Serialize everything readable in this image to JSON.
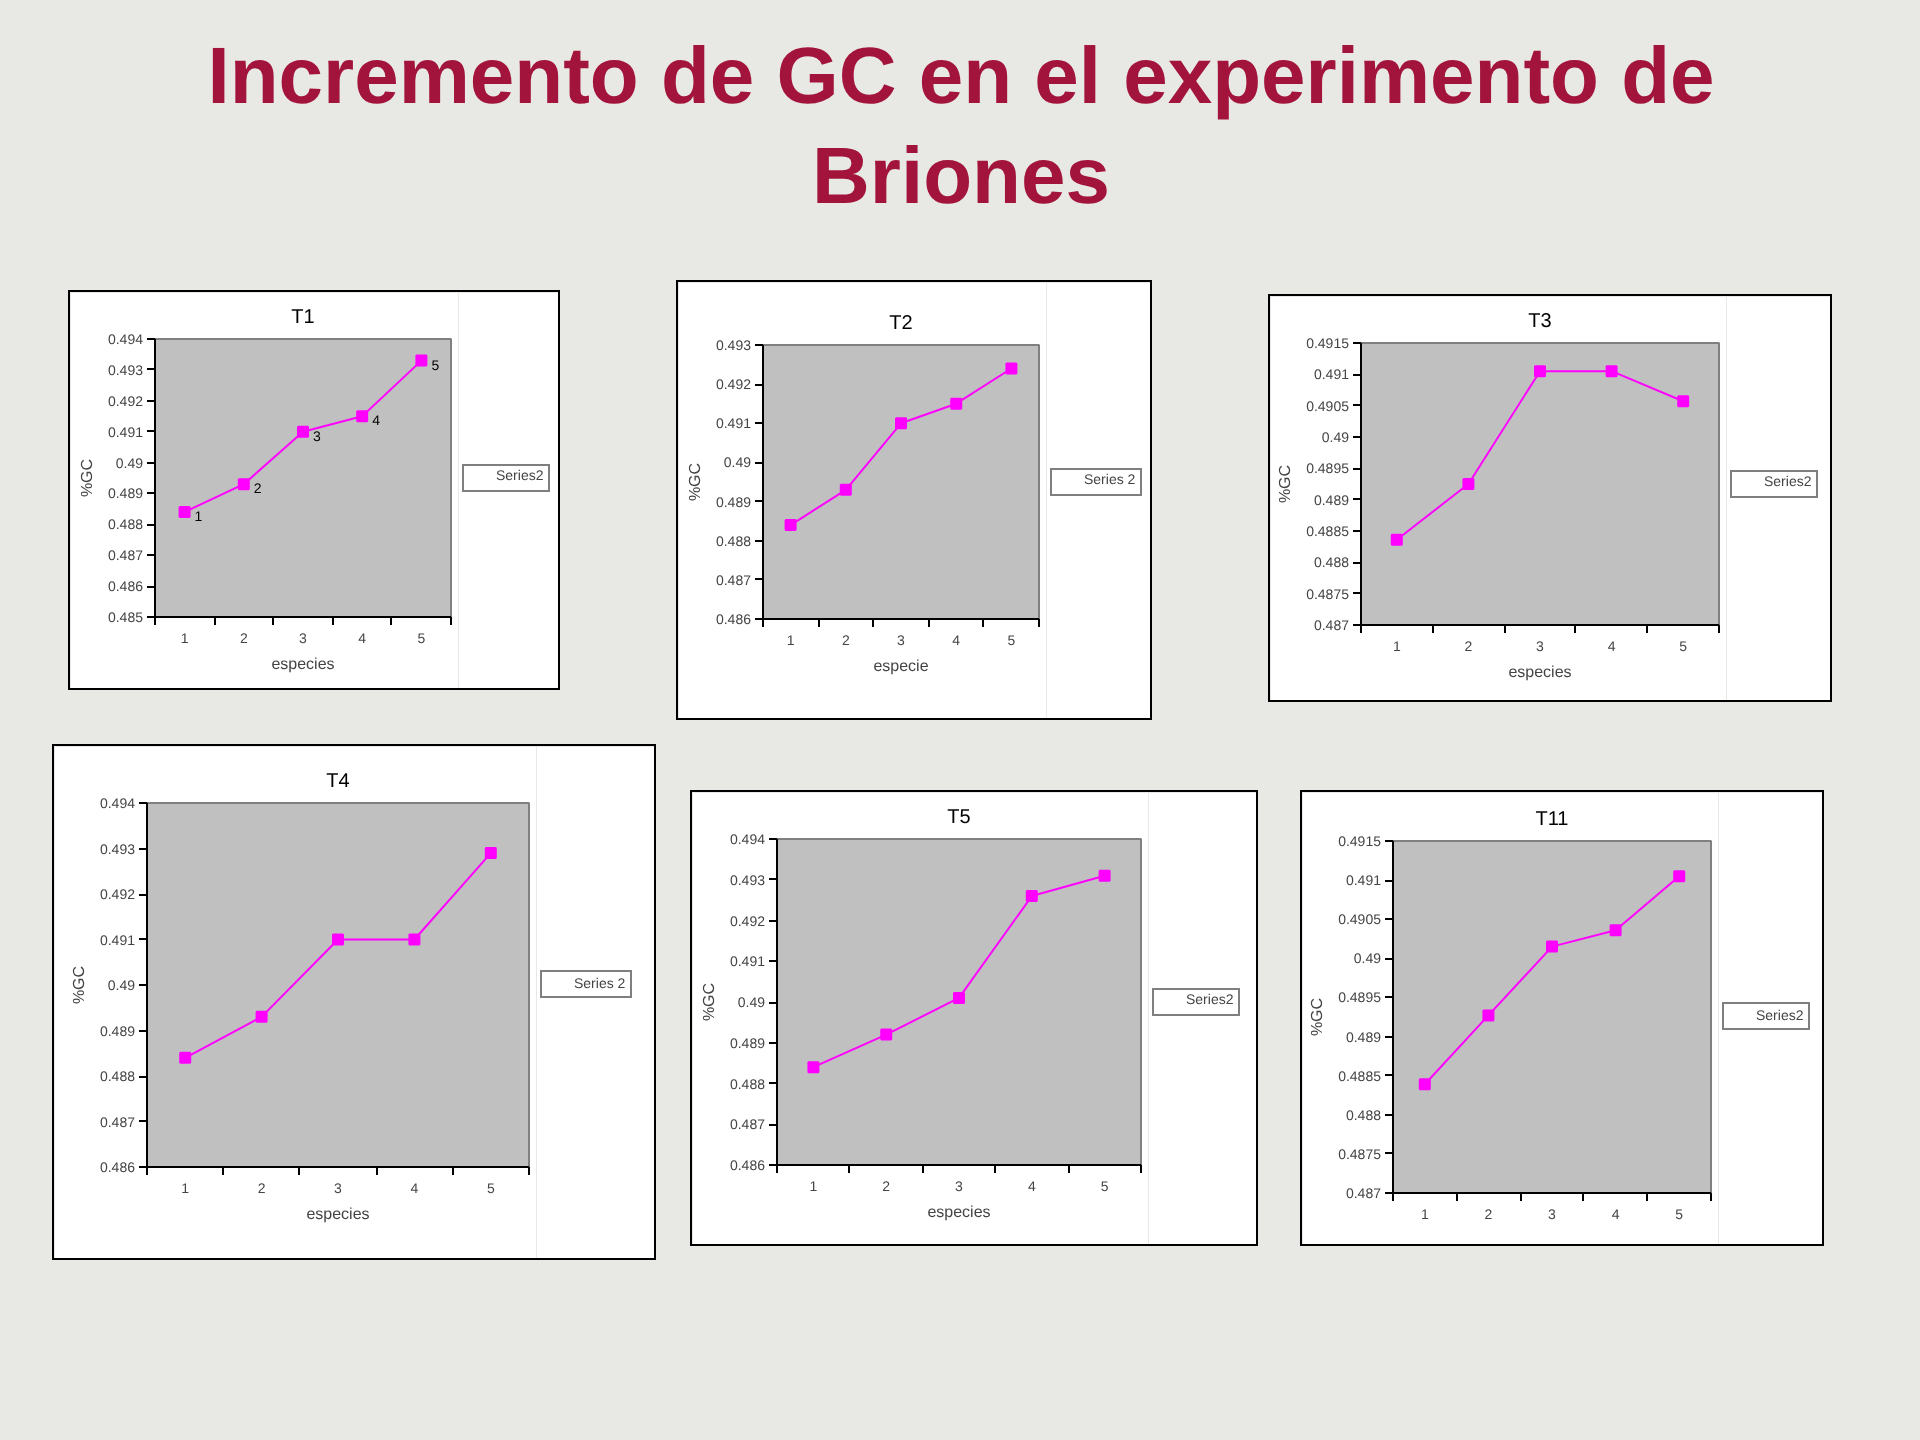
{
  "chart_data": [
    {
      "type": "other",
      "title": "Incremento de GC en el experimento de Briones"
    },
    {
      "type": "line",
      "title": "T1",
      "xlabel": "especies",
      "ylabel": "%GC",
      "categories": [
        "1",
        "2",
        "3",
        "4",
        "5"
      ],
      "series": [
        {
          "name": "Series2",
          "color": "#ff00ff",
          "values": [
            0.4884,
            0.4893,
            0.491,
            0.4915,
            0.4933
          ]
        }
      ],
      "annotations": [
        {
          "text": "1",
          "x": "1",
          "y": 0.4884
        },
        {
          "text": "2",
          "x": "2",
          "y": 0.4893
        },
        {
          "text": "3",
          "x": "3",
          "y": 0.491
        },
        {
          "text": "4",
          "x": "4",
          "y": 0.4915
        },
        {
          "text": "5",
          "x": "5",
          "y": 0.4933
        }
      ],
      "ylim": [
        0.485,
        0.494
      ],
      "yticks": [
        0.485,
        0.486,
        0.487,
        0.488,
        0.489,
        0.49,
        0.491,
        0.492,
        0.493,
        0.494
      ],
      "grid": false,
      "legend": "right",
      "marker": "square"
    },
    {
      "type": "line",
      "title": "T2",
      "xlabel": "especie",
      "ylabel": "%GC",
      "categories": [
        "1",
        "2",
        "3",
        "4",
        "5"
      ],
      "series": [
        {
          "name": "Series 2",
          "color": "#ff00ff",
          "values": [
            0.4884,
            0.4893,
            0.491,
            0.4915,
            0.4924
          ]
        }
      ],
      "ylim": [
        0.486,
        0.493
      ],
      "yticks": [
        0.486,
        0.487,
        0.488,
        0.489,
        0.49,
        0.491,
        0.492,
        0.493
      ],
      "grid": false,
      "legend": "right",
      "marker": "square"
    },
    {
      "type": "line",
      "title": "T3",
      "xlabel": "especies",
      "ylabel": "%GC",
      "categories": [
        "1",
        "2",
        "3",
        "4",
        "5"
      ],
      "series": [
        {
          "name": "Series2",
          "color": "#ff00ff",
          "values": [
            0.48836,
            0.48925,
            0.49105,
            0.49105,
            0.49057
          ]
        }
      ],
      "ylim": [
        0.487,
        0.4915
      ],
      "yticks": [
        0.487,
        0.4875,
        0.488,
        0.4885,
        0.489,
        0.4895,
        0.49,
        0.4905,
        0.491,
        0.4915
      ],
      "grid": false,
      "legend": "right",
      "marker": "square"
    },
    {
      "type": "line",
      "title": "T4",
      "xlabel": "especies",
      "ylabel": "%GC",
      "categories": [
        "1",
        "2",
        "3",
        "4",
        "5"
      ],
      "series": [
        {
          "name": "Series 2",
          "color": "#ff00ff",
          "values": [
            0.4884,
            0.4893,
            0.491,
            0.491,
            0.4929
          ]
        }
      ],
      "ylim": [
        0.486,
        0.494
      ],
      "yticks": [
        0.486,
        0.487,
        0.488,
        0.489,
        0.49,
        0.491,
        0.492,
        0.493,
        0.494
      ],
      "grid": false,
      "legend": "right",
      "marker": "square"
    },
    {
      "type": "line",
      "title": "T5",
      "xlabel": "especies",
      "ylabel": "%GC",
      "categories": [
        "1",
        "2",
        "3",
        "4",
        "5"
      ],
      "series": [
        {
          "name": "Series2",
          "color": "#ff00ff",
          "values": [
            0.4884,
            0.4892,
            0.4901,
            0.4926,
            0.4931
          ]
        }
      ],
      "ylim": [
        0.486,
        0.494
      ],
      "yticks": [
        0.486,
        0.487,
        0.488,
        0.489,
        0.49,
        0.491,
        0.492,
        0.493,
        0.494
      ],
      "grid": false,
      "legend": "right",
      "marker": "square"
    },
    {
      "type": "line",
      "title": "T11",
      "ylabel": "%GC",
      "categories": [
        "1",
        "2",
        "3",
        "4",
        "5"
      ],
      "series": [
        {
          "name": "Series2",
          "color": "#ff00ff",
          "values": [
            0.48839,
            0.48927,
            0.49015,
            0.49036,
            0.49105
          ]
        }
      ],
      "ylim": [
        0.487,
        0.4915
      ],
      "yticks": [
        0.487,
        0.4875,
        0.488,
        0.4885,
        0.489,
        0.4895,
        0.49,
        0.4905,
        0.491,
        0.4915
      ],
      "grid": false,
      "legend": "right",
      "marker": "square"
    }
  ]
}
